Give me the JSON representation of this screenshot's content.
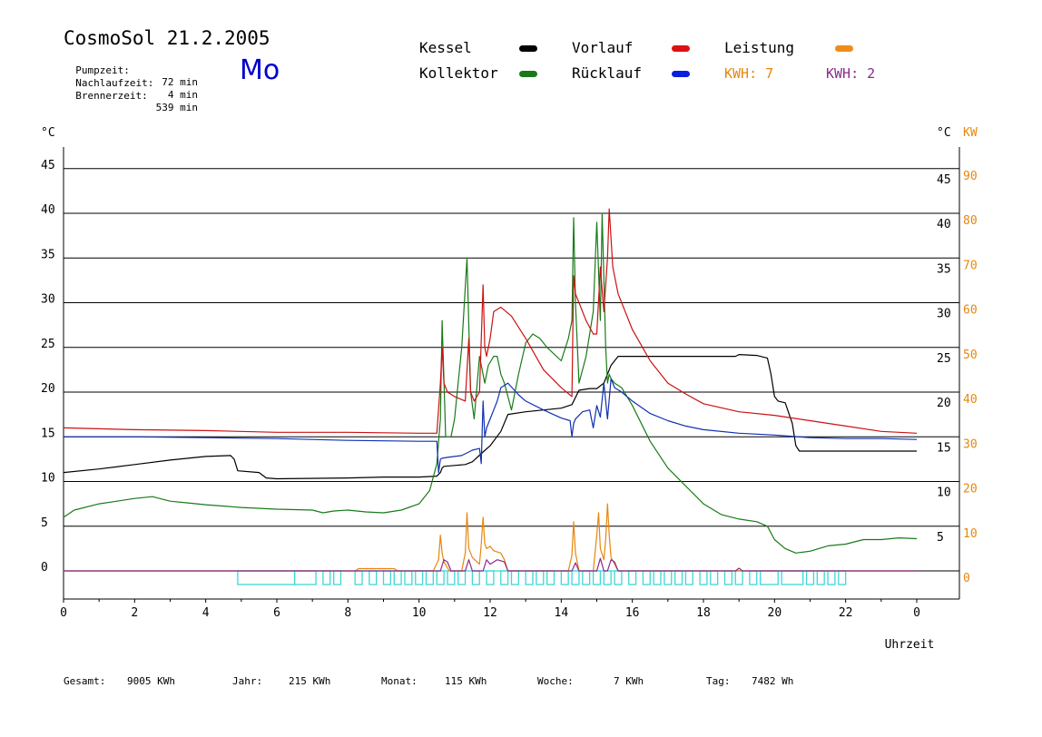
{
  "header": {
    "title": "CosmoSol 21.2.2005",
    "day": "Mo",
    "info": [
      {
        "label": "Pumpzeit:",
        "value": "72 min"
      },
      {
        "label": "Nachlaufzeit:",
        "value": "4 min"
      },
      {
        "label": "Brennerzeit:",
        "value": "539 min"
      }
    ]
  },
  "legend": {
    "kessel": "Kessel",
    "kollektor": "Kollektor",
    "vorlauf": "Vorlauf",
    "ruecklauf": "Rücklauf",
    "leistung": "Leistung",
    "kwh1": "KWH: 7",
    "kwh2": "KWH: 2"
  },
  "colors": {
    "kessel": "#000000",
    "kollektor": "#1a7a1a",
    "vorlauf": "#cc1111",
    "ruecklauf": "#1030b0",
    "leistung": "#e8860c",
    "kwh2": "#8b2a8b",
    "pump": "#3fd6d6"
  },
  "footer": [
    {
      "label": "Gesamt:",
      "value": "9005 KWh"
    },
    {
      "label": "Jahr:",
      "value": "215 KWh"
    },
    {
      "label": "Monat:",
      "value": "115 KWh"
    },
    {
      "label": "Woche:",
      "value": "7 KWh"
    },
    {
      "label": "Tag:",
      "value": "7482 Wh"
    }
  ],
  "chart_data": {
    "type": "line",
    "title": "CosmoSol 21.2.2005",
    "xlabel": "Uhrzeit",
    "ylabel_left": "°C",
    "ylabel_right": [
      "°C",
      "KW"
    ],
    "xlim": [
      0,
      24
    ],
    "ylim": [
      0,
      45
    ],
    "ylim_right_kw": [
      0,
      90
    ],
    "x_ticks": [
      "0",
      "2",
      "4",
      "6",
      "8",
      "10",
      "12",
      "14",
      "16",
      "18",
      "20",
      "22",
      "0"
    ],
    "y_ticks_left": [
      "0",
      "5",
      "10",
      "15",
      "20",
      "25",
      "30",
      "35",
      "40",
      "45"
    ],
    "y_ticks_right": [
      "",
      "5",
      "10",
      "15",
      "20",
      "25",
      "30",
      "35",
      "40",
      "45"
    ],
    "y_ticks_kw": [
      "0",
      "10",
      "20",
      "30",
      "40",
      "50",
      "60",
      "70",
      "80",
      "90"
    ],
    "grid": true,
    "series": [
      {
        "name": "Kessel",
        "key": "kessel",
        "x": [
          0,
          1,
          2,
          3,
          4,
          4.7,
          4.8,
          4.9,
          5.5,
          5.7,
          6,
          8,
          9,
          10,
          10.5,
          10.6,
          10.65,
          10.7,
          11,
          11.3,
          11.5,
          11.8,
          12,
          12.3,
          12.5,
          13,
          14,
          14.3,
          14.5,
          14.8,
          15,
          15.2,
          15.4,
          15.6,
          16,
          17,
          18,
          18.9,
          19,
          19.5,
          19.8,
          19.9,
          20,
          20.1,
          20.3,
          20.5,
          20.6,
          20.7,
          21,
          22,
          23,
          24
        ],
        "y": [
          11,
          11.4,
          11.9,
          12.4,
          12.8,
          12.9,
          12.5,
          11.2,
          11,
          10.4,
          10.3,
          10.4,
          10.5,
          10.5,
          10.6,
          11,
          11.5,
          11.7,
          11.8,
          11.9,
          12.2,
          13.3,
          14,
          15.6,
          17.5,
          17.8,
          18.2,
          18.6,
          20.2,
          20.4,
          20.4,
          21,
          23,
          24,
          24,
          24,
          24,
          24,
          24.2,
          24.1,
          23.8,
          22,
          19.5,
          19,
          18.8,
          16.5,
          14,
          13.4,
          13.4,
          13.4,
          13.4,
          13.4
        ]
      },
      {
        "name": "Kollektor",
        "key": "kollektor",
        "x": [
          0,
          0.3,
          1,
          1.5,
          2,
          2.5,
          3,
          3.5,
          4,
          5,
          6,
          7,
          7.3,
          7.6,
          8,
          8.5,
          9,
          9.5,
          10,
          10.3,
          10.5,
          10.6,
          10.65,
          10.75,
          10.9,
          11,
          11.2,
          11.35,
          11.45,
          11.55,
          11.7,
          11.85,
          11.95,
          12.1,
          12.2,
          12.3,
          12.4,
          12.6,
          12.8,
          13,
          13.2,
          13.4,
          13.6,
          14,
          14.2,
          14.3,
          14.35,
          14.4,
          14.5,
          14.7,
          14.9,
          15,
          15.1,
          15.15,
          15.25,
          15.3,
          15.35,
          15.4,
          15.5,
          15.7,
          16,
          16.5,
          17,
          17.5,
          18,
          18.5,
          19,
          19.5,
          19.8,
          20,
          20.3,
          20.6,
          21,
          21.5,
          22,
          22.5,
          23,
          23.5,
          24
        ],
        "y": [
          6,
          6.8,
          7.5,
          7.8,
          8.1,
          8.3,
          7.8,
          7.6,
          7.4,
          7.1,
          6.9,
          6.8,
          6.5,
          6.7,
          6.8,
          6.6,
          6.5,
          6.8,
          7.5,
          9,
          12,
          17,
          28,
          15,
          15,
          17,
          25,
          35,
          20,
          17,
          24,
          21,
          23,
          24,
          24,
          22,
          21,
          18,
          22,
          25.5,
          26.5,
          26,
          25,
          23.5,
          26,
          28,
          39.5,
          30,
          21,
          24,
          29,
          39,
          28,
          40,
          25,
          21,
          22,
          21.5,
          21,
          20.5,
          18.5,
          14.5,
          11.5,
          9.5,
          7.5,
          6.3,
          5.8,
          5.5,
          5.0,
          3.5,
          2.5,
          2.0,
          2.2,
          2.8,
          3.0,
          3.5,
          3.5,
          3.7,
          3.6
        ]
      },
      {
        "name": "Vorlauf",
        "key": "vorlauf",
        "x": [
          0,
          2,
          4,
          6,
          8,
          10,
          10.5,
          10.6,
          10.65,
          10.7,
          10.8,
          11,
          11.3,
          11.4,
          11.45,
          11.55,
          11.7,
          11.8,
          11.85,
          11.9,
          12,
          12.1,
          12.3,
          12.6,
          13,
          13.5,
          14,
          14.3,
          14.35,
          14.4,
          14.5,
          14.7,
          14.9,
          15,
          15.1,
          15.2,
          15.3,
          15.35,
          15.45,
          15.6,
          16,
          16.5,
          17,
          17.5,
          18,
          19,
          20,
          21,
          22,
          23,
          24
        ],
        "y": [
          16.0,
          15.8,
          15.7,
          15.5,
          15.5,
          15.4,
          15.4,
          21,
          25,
          21,
          20,
          19.5,
          19,
          26,
          20,
          19,
          20,
          32,
          25,
          24,
          26,
          29,
          29.5,
          28.5,
          26,
          22.5,
          20.5,
          19.5,
          33,
          31,
          30,
          28,
          26.5,
          26.5,
          34,
          29,
          35,
          40.5,
          34,
          31,
          27,
          23.5,
          21,
          19.8,
          18.7,
          17.8,
          17.4,
          16.8,
          16.2,
          15.6,
          15.4
        ]
      },
      {
        "name": "Rücklauf",
        "key": "ruecklauf",
        "x": [
          0,
          2,
          4,
          6,
          8,
          10,
          10.5,
          10.55,
          10.6,
          10.65,
          10.8,
          11,
          11.2,
          11.5,
          11.7,
          11.75,
          11.8,
          11.85,
          11.9,
          12,
          12.1,
          12.2,
          12.3,
          12.5,
          12.8,
          13,
          13.5,
          14,
          14.25,
          14.3,
          14.35,
          14.4,
          14.6,
          14.8,
          14.9,
          15,
          15.1,
          15.2,
          15.3,
          15.4,
          15.5,
          15.7,
          16,
          16.5,
          17,
          17.5,
          18,
          19,
          20,
          21,
          22,
          23,
          24
        ],
        "y": [
          15.0,
          15.0,
          14.9,
          14.8,
          14.6,
          14.5,
          14.5,
          11,
          12.5,
          12.6,
          12.7,
          12.8,
          12.9,
          13.5,
          13.7,
          12,
          19,
          15,
          16,
          17,
          18,
          19,
          20.5,
          21,
          19.7,
          19,
          18,
          17.1,
          16.8,
          15,
          16.5,
          17,
          17.8,
          18,
          16,
          18.5,
          17.2,
          21,
          17,
          21.5,
          20.5,
          20,
          19,
          17.6,
          16.8,
          16.2,
          15.8,
          15.4,
          15.2,
          14.9,
          14.8,
          14.8,
          14.7
        ]
      },
      {
        "name": "Leistung",
        "key": "leistung",
        "axis": "kw",
        "x": [
          0,
          8.2,
          8.3,
          9.3,
          9.4,
          10.4,
          10.55,
          10.6,
          10.65,
          10.7,
          10.85,
          11.2,
          11.3,
          11.35,
          11.4,
          11.5,
          11.7,
          11.75,
          11.8,
          11.85,
          11.9,
          12,
          12.1,
          12.3,
          12.4,
          12.5,
          14.2,
          14.3,
          14.35,
          14.4,
          14.5,
          14.9,
          15,
          15.05,
          15.1,
          15.2,
          15.25,
          15.3,
          15.35,
          15.4,
          15.5,
          15.6,
          24
        ],
        "y": [
          0,
          0,
          0.5,
          0.5,
          0,
          0,
          2.5,
          8,
          4,
          2,
          0,
          0,
          4,
          13,
          5,
          3,
          1.5,
          6,
          12,
          6,
          5,
          5.5,
          4.5,
          4,
          2.5,
          0,
          0,
          3.5,
          11,
          4,
          0,
          0,
          8,
          13,
          5,
          2.5,
          7,
          15,
          8,
          3,
          1.5,
          0,
          0
        ]
      },
      {
        "name": "KWH: 2",
        "key": "kwh2",
        "axis": "kw",
        "x": [
          0,
          10.6,
          10.7,
          10.8,
          10.9,
          11.3,
          11.4,
          11.5,
          11.8,
          11.9,
          12,
          12.1,
          12.2,
          12.4,
          12.5,
          14.3,
          14.4,
          14.5,
          15,
          15.1,
          15.2,
          15.3,
          15.4,
          15.5,
          15.6,
          18.9,
          19,
          19.1,
          24
        ],
        "y": [
          0,
          0,
          2.5,
          2,
          0,
          0,
          2.5,
          0,
          0,
          2.5,
          1.5,
          2,
          2.5,
          2,
          0,
          0,
          1.8,
          0,
          0,
          2.8,
          0,
          0,
          2.5,
          2,
          0,
          0,
          0.6,
          0,
          0
        ]
      },
      {
        "name": "Pumpe",
        "key": "pump",
        "kind": "state",
        "intervals": [
          [
            4.9,
            6.5
          ],
          [
            6.5,
            7.1
          ],
          [
            7.3,
            7.5
          ],
          [
            7.6,
            7.8
          ],
          [
            8.2,
            8.4
          ],
          [
            8.6,
            8.8
          ],
          [
            9.0,
            9.2
          ],
          [
            9.3,
            9.5
          ],
          [
            9.6,
            9.8
          ],
          [
            9.9,
            10.1
          ],
          [
            10.2,
            10.4
          ],
          [
            10.5,
            10.7
          ],
          [
            10.8,
            11.0
          ],
          [
            11.1,
            11.3
          ],
          [
            11.5,
            11.7
          ],
          [
            11.9,
            12.1
          ],
          [
            12.3,
            12.5
          ],
          [
            12.6,
            12.8
          ],
          [
            13.0,
            13.2
          ],
          [
            13.3,
            13.5
          ],
          [
            13.6,
            13.8
          ],
          [
            14.0,
            14.2
          ],
          [
            14.3,
            14.5
          ],
          [
            14.6,
            14.8
          ],
          [
            14.9,
            15.1
          ],
          [
            15.2,
            15.4
          ],
          [
            15.5,
            15.7
          ],
          [
            15.9,
            16.1
          ],
          [
            16.3,
            16.5
          ],
          [
            16.6,
            16.8
          ],
          [
            16.9,
            17.1
          ],
          [
            17.2,
            17.4
          ],
          [
            17.5,
            17.7
          ],
          [
            17.9,
            18.1
          ],
          [
            18.2,
            18.4
          ],
          [
            18.6,
            18.8
          ],
          [
            18.9,
            19.1
          ],
          [
            19.3,
            19.5
          ],
          [
            19.6,
            20.1
          ],
          [
            20.2,
            20.8
          ],
          [
            20.9,
            21.1
          ],
          [
            21.2,
            21.4
          ],
          [
            21.5,
            21.7
          ],
          [
            21.8,
            22.0
          ]
        ]
      }
    ]
  }
}
